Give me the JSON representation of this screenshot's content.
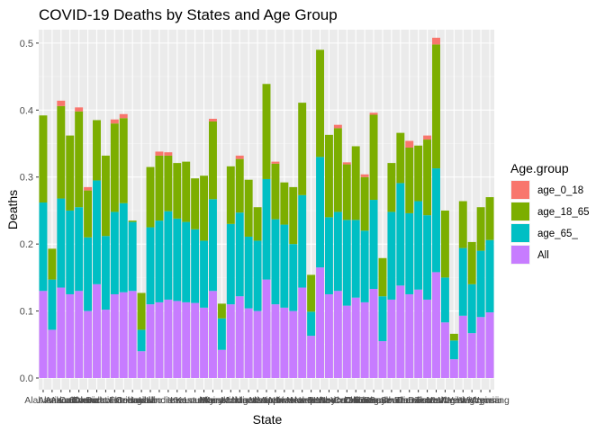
{
  "chart_data": {
    "type": "bar",
    "stacked": true,
    "title": "COVID-19 Deaths by States and Age Group",
    "xlabel": "State",
    "ylabel": "Deaths",
    "ylim": [
      0,
      0.52
    ],
    "yticks": [
      0.0,
      0.1,
      0.2,
      0.3,
      0.4,
      0.5
    ],
    "ytick_labels": [
      "0.0",
      "0.1",
      "0.2",
      "0.3",
      "0.4",
      "0.5"
    ],
    "grid": true,
    "legend_title": "Age.group",
    "legend_position": "right",
    "categories": [
      "Alabama",
      "Alaska",
      "Arizona",
      "Arkansas",
      "California",
      "Colorado",
      "Connecticut",
      "Delaware",
      "District of Columbia",
      "Florida",
      "Georgia",
      "Hawaii",
      "Idaho",
      "Illinois",
      "Indiana",
      "Iowa",
      "Kansas",
      "Kentucky",
      "Louisiana",
      "Maine",
      "Maryland",
      "Massachusetts",
      "Michigan",
      "Minnesota",
      "Mississippi",
      "Missouri",
      "Montana",
      "Nebraska",
      "Nevada",
      "New Hampshire",
      "New Jersey",
      "New Mexico",
      "New York",
      "North Carolina",
      "North Dakota",
      "Ohio",
      "Oklahoma",
      "Oregon",
      "Pennsylvania",
      "Rhode Island",
      "South Carolina",
      "South Dakota",
      "Tennessee",
      "Texas",
      "Utah",
      "Vermont",
      "Virginia",
      "Washington",
      "West Virginia",
      "Wisconsin",
      "Wyoming"
    ],
    "series": [
      {
        "name": "All",
        "color": "#C77CFF",
        "values": [
          0.13,
          0.072,
          0.135,
          0.125,
          0.13,
          0.1,
          0.14,
          0.102,
          0.125,
          0.128,
          0.13,
          0.04,
          0.11,
          0.113,
          0.117,
          0.115,
          0.113,
          0.112,
          0.105,
          0.13,
          0.042,
          0.11,
          0.122,
          0.104,
          0.1,
          0.147,
          0.11,
          0.105,
          0.1,
          0.135,
          0.063,
          0.165,
          0.125,
          0.13,
          0.108,
          0.12,
          0.113,
          0.133,
          0.055,
          0.117,
          0.138,
          0.125,
          0.132,
          0.117,
          0.158,
          0.083,
          0.028,
          0.093,
          0.067,
          0.091,
          0.098
        ]
      },
      {
        "name": "age_65_",
        "color": "#00BFC4",
        "values": [
          0.132,
          0.075,
          0.133,
          0.125,
          0.125,
          0.11,
          0.155,
          0.11,
          0.123,
          0.133,
          0.103,
          0.032,
          0.115,
          0.122,
          0.132,
          0.123,
          0.12,
          0.11,
          0.1,
          0.137,
          0.047,
          0.12,
          0.125,
          0.107,
          0.105,
          0.15,
          0.127,
          0.124,
          0.1,
          0.138,
          0.036,
          0.165,
          0.115,
          0.118,
          0.128,
          0.116,
          0.107,
          0.133,
          0.067,
          0.131,
          0.153,
          0.121,
          0.132,
          0.126,
          0.155,
          0.067,
          0.028,
          0.101,
          0.073,
          0.099,
          0.108
        ]
      },
      {
        "name": "age_18_65",
        "color": "#7CAE00",
        "values": [
          0.13,
          0.046,
          0.138,
          0.112,
          0.143,
          0.07,
          0.09,
          0.12,
          0.132,
          0.127,
          0.002,
          0.055,
          0.09,
          0.097,
          0.083,
          0.083,
          0.09,
          0.076,
          0.097,
          0.116,
          0.022,
          0.086,
          0.08,
          0.085,
          0.05,
          0.142,
          0.083,
          0.063,
          0.085,
          0.138,
          0.055,
          0.16,
          0.123,
          0.125,
          0.083,
          0.11,
          0.08,
          0.127,
          0.057,
          0.073,
          0.075,
          0.098,
          0.083,
          0.113,
          0.185,
          0.1,
          0.01,
          0.07,
          0.063,
          0.065,
          0.064
        ]
      },
      {
        "name": "age_0_18",
        "color": "#F8766D",
        "values": [
          0.0,
          0.0,
          0.008,
          0.0,
          0.006,
          0.005,
          0.0,
          0.0,
          0.006,
          0.006,
          0.0,
          0.0,
          0.0,
          0.006,
          0.005,
          0.0,
          0.0,
          0.0,
          0.0,
          0.004,
          0.0,
          0.0,
          0.005,
          0.0,
          0.0,
          0.0,
          0.003,
          0.0,
          0.0,
          0.0,
          0.0,
          0.0,
          0.0,
          0.005,
          0.003,
          0.0,
          0.004,
          0.003,
          0.0,
          0.0,
          0.0,
          0.01,
          0.0,
          0.006,
          0.01,
          0.0,
          0.0,
          0.0,
          0.0,
          0.0,
          0.0
        ]
      }
    ],
    "legend_order": [
      "age_0_18",
      "age_18_65",
      "age_65_",
      "All"
    ],
    "xtick_visible": [
      "Alabama",
      "Alaska",
      "Arizona",
      "Arkansas",
      "California",
      "Colorado",
      "Connecticut",
      "Delaware",
      "District of Columbia",
      "Florida",
      "Georgia",
      "Hawaii",
      "Idaho",
      "Illinois",
      "Indiana",
      "Iowa",
      "Kansas",
      "Kentucky",
      "Louisiana",
      "Maine",
      "Maryland",
      "Massachusetts",
      "Michigan",
      "Minnesota",
      "Mississippi",
      "Missouri",
      "Montana",
      "Nebraska",
      "Nevada",
      "New Hampshire",
      "New Jersey",
      "New Mexico",
      "New York",
      "North Carolina",
      "North Dakota",
      "Ohio",
      "Oklahoma",
      "Oregon",
      "Pennsylvania",
      "Rhode Island",
      "South Carolina",
      "South Dakota",
      "Tennessee",
      "Texas",
      "Utah",
      "Vermont",
      "Virginia",
      "Washington",
      "West Virginia",
      "Wisconsin",
      "Wyoming"
    ]
  }
}
